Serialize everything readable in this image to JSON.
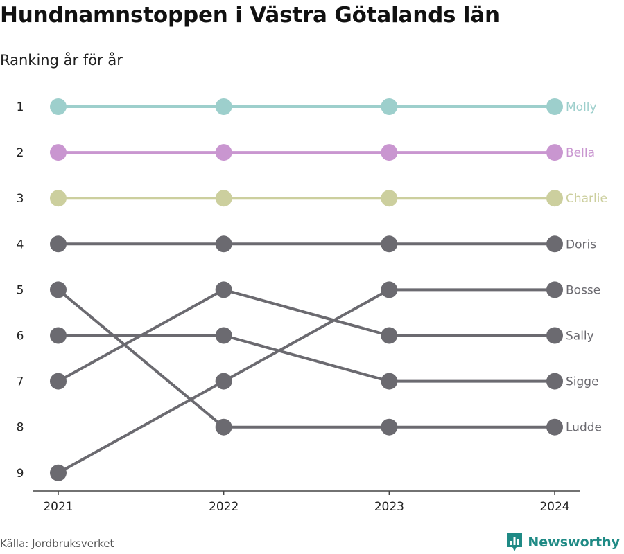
{
  "title": "Hundnamnstoppen i Västra Götalands län",
  "subtitle": "Ranking år för år",
  "source": "Källa: Jordbruksverket",
  "brand": "Newsworthy",
  "colors": {
    "highlight1": "#9dcfcc",
    "highlight2": "#c996d0",
    "highlight3": "#cccf9e",
    "other": "#6b6a70",
    "brand": "#1f8a85"
  },
  "chart_data": {
    "type": "line",
    "x": [
      "2021",
      "2022",
      "2023",
      "2024"
    ],
    "y_ticks": [
      "1",
      "2",
      "3",
      "4",
      "5",
      "6",
      "7",
      "8",
      "9"
    ],
    "y_reversed": true,
    "ylim": [
      1,
      9
    ],
    "series": [
      {
        "name": "Molly",
        "values": [
          1,
          1,
          1,
          1
        ],
        "color": "#9dcfcc"
      },
      {
        "name": "Bella",
        "values": [
          2,
          2,
          2,
          2
        ],
        "color": "#c996d0"
      },
      {
        "name": "Charlie",
        "values": [
          3,
          3,
          3,
          3
        ],
        "color": "#cccf9e"
      },
      {
        "name": "Doris",
        "values": [
          4,
          4,
          4,
          4
        ],
        "color": "#6b6a70"
      },
      {
        "name": "Bosse",
        "values": [
          9,
          7,
          5,
          5
        ],
        "color": "#6b6a70"
      },
      {
        "name": "Sally",
        "values": [
          7,
          5,
          6,
          6
        ],
        "color": "#6b6a70"
      },
      {
        "name": "Sigge",
        "values": [
          6,
          6,
          7,
          7
        ],
        "color": "#6b6a70"
      },
      {
        "name": "Ludde",
        "values": [
          5,
          8,
          8,
          8
        ],
        "color": "#6b6a70"
      }
    ]
  }
}
